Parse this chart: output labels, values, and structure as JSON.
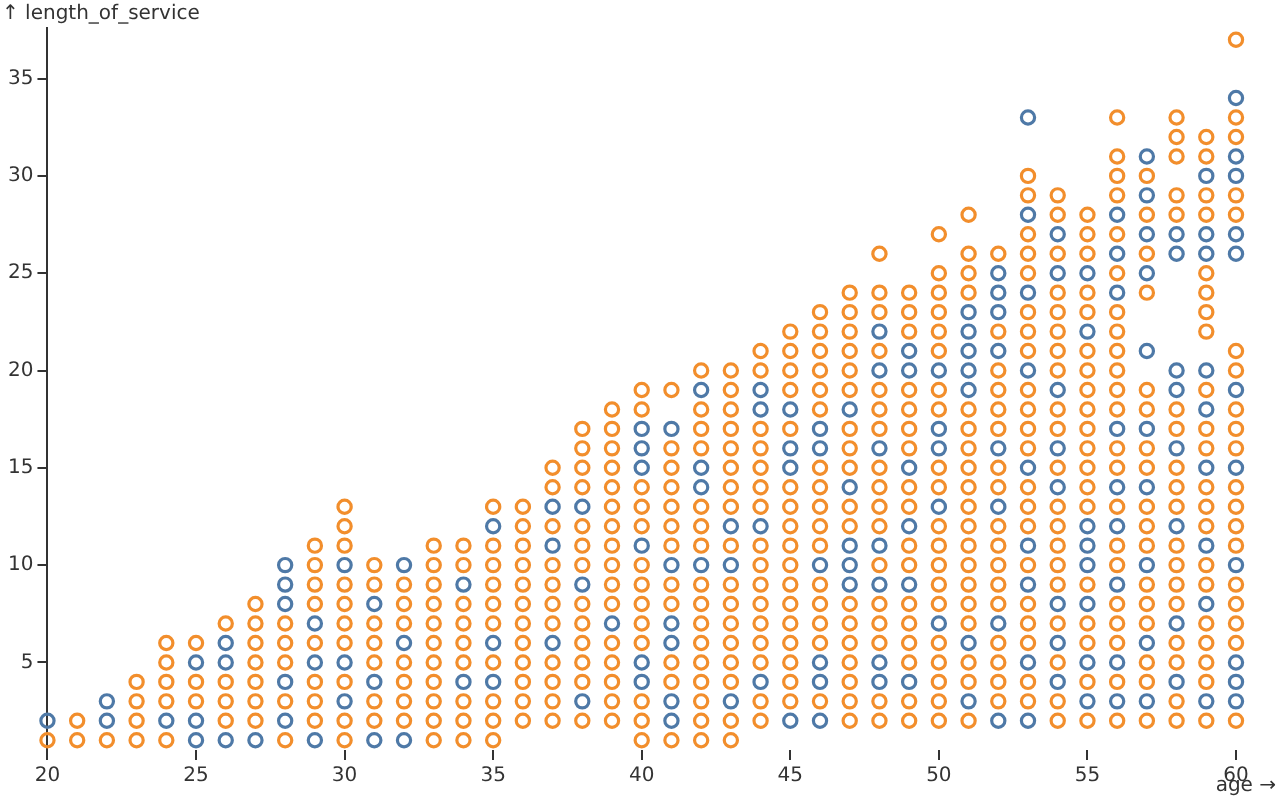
{
  "chart_data": {
    "type": "scatter",
    "xlabel": "age →",
    "ylabel": "↑ length_of_service",
    "marker": "circle",
    "grid": false,
    "legend": false,
    "xlim": [
      20,
      60
    ],
    "ylim": [
      0.5,
      37.6
    ],
    "xticks": [
      20,
      25,
      30,
      35,
      40,
      45,
      50,
      55,
      60
    ],
    "yticks": [
      5,
      10,
      15,
      20,
      25,
      30,
      35
    ],
    "series": [
      {
        "color": "#4e79a7",
        "x": [
          20,
          22,
          22,
          24,
          25,
          25,
          25,
          26,
          26,
          26,
          27,
          28,
          28,
          28,
          28,
          28,
          29,
          29,
          29,
          30,
          30,
          30,
          31,
          31,
          31,
          32,
          32,
          32,
          34,
          34,
          35,
          35,
          35,
          37,
          37,
          37,
          38,
          38,
          38,
          39,
          40,
          40,
          40,
          40,
          40,
          40,
          41,
          41,
          41,
          41,
          41,
          41,
          42,
          42,
          42,
          42,
          43,
          43,
          43,
          44,
          44,
          44,
          44,
          45,
          45,
          45,
          45,
          46,
          46,
          46,
          46,
          46,
          46,
          47,
          47,
          47,
          47,
          47,
          48,
          48,
          48,
          48,
          48,
          48,
          48,
          49,
          49,
          49,
          49,
          49,
          49,
          50,
          50,
          50,
          50,
          50,
          51,
          51,
          51,
          51,
          51,
          51,
          51,
          52,
          52,
          52,
          52,
          52,
          52,
          52,
          52,
          53,
          53,
          53,
          53,
          53,
          53,
          53,
          53,
          53,
          54,
          54,
          54,
          54,
          54,
          54,
          54,
          54,
          55,
          55,
          55,
          55,
          55,
          55,
          55,
          55,
          56,
          56,
          56,
          56,
          56,
          56,
          56,
          56,
          56,
          57,
          57,
          57,
          57,
          57,
          57,
          57,
          57,
          57,
          57,
          58,
          58,
          58,
          58,
          58,
          58,
          58,
          58,
          59,
          59,
          59,
          59,
          59,
          59,
          59,
          59,
          59,
          60,
          60,
          60,
          60,
          60,
          60,
          60,
          60,
          60,
          60,
          60
        ],
        "values": [
          2,
          2,
          3,
          2,
          1,
          2,
          5,
          1,
          5,
          6,
          1,
          2,
          4,
          8,
          9,
          10,
          1,
          5,
          7,
          3,
          5,
          10,
          1,
          4,
          8,
          1,
          6,
          10,
          4,
          9,
          4,
          6,
          12,
          6,
          11,
          13,
          3,
          9,
          13,
          7,
          4,
          5,
          11,
          15,
          16,
          17,
          2,
          3,
          6,
          7,
          10,
          17,
          10,
          14,
          15,
          19,
          3,
          10,
          12,
          4,
          12,
          18,
          19,
          2,
          15,
          16,
          18,
          2,
          4,
          5,
          10,
          16,
          17,
          9,
          10,
          11,
          14,
          18,
          4,
          5,
          9,
          11,
          16,
          20,
          22,
          4,
          9,
          12,
          15,
          20,
          21,
          7,
          13,
          16,
          17,
          20,
          3,
          6,
          19,
          20,
          21,
          22,
          23,
          2,
          7,
          13,
          16,
          21,
          23,
          24,
          25,
          2,
          5,
          9,
          11,
          15,
          20,
          24,
          28,
          33,
          4,
          6,
          8,
          14,
          16,
          19,
          25,
          27,
          3,
          5,
          8,
          10,
          11,
          12,
          22,
          25,
          3,
          5,
          9,
          12,
          14,
          17,
          24,
          26,
          28,
          3,
          6,
          10,
          14,
          17,
          21,
          25,
          27,
          29,
          31,
          4,
          7,
          12,
          16,
          19,
          20,
          26,
          27,
          3,
          8,
          11,
          15,
          18,
          20,
          26,
          27,
          30,
          3,
          4,
          5,
          10,
          15,
          19,
          26,
          27,
          30,
          31,
          34
        ]
      },
      {
        "color": "#f28e2c",
        "x": [
          20,
          21,
          21,
          22,
          23,
          23,
          23,
          23,
          24,
          24,
          24,
          24,
          24,
          25,
          25,
          25,
          26,
          26,
          26,
          26,
          27,
          27,
          27,
          27,
          27,
          27,
          27,
          28,
          28,
          28,
          28,
          28,
          29,
          29,
          29,
          29,
          29,
          29,
          29,
          29,
          30,
          30,
          30,
          30,
          30,
          30,
          30,
          30,
          30,
          30,
          31,
          31,
          31,
          31,
          31,
          31,
          31,
          32,
          32,
          32,
          32,
          32,
          32,
          32,
          33,
          33,
          33,
          33,
          33,
          33,
          33,
          33,
          33,
          33,
          33,
          34,
          34,
          34,
          34,
          34,
          34,
          34,
          34,
          34,
          35,
          35,
          35,
          35,
          35,
          35,
          35,
          35,
          35,
          35,
          36,
          36,
          36,
          36,
          36,
          36,
          36,
          36,
          36,
          36,
          36,
          36,
          37,
          37,
          37,
          37,
          37,
          37,
          37,
          37,
          37,
          37,
          37,
          38,
          38,
          38,
          38,
          38,
          38,
          38,
          38,
          38,
          38,
          38,
          38,
          38,
          39,
          39,
          39,
          39,
          39,
          39,
          39,
          39,
          39,
          39,
          39,
          39,
          39,
          39,
          39,
          39,
          40,
          40,
          40,
          40,
          40,
          40,
          40,
          40,
          40,
          40,
          40,
          40,
          40,
          41,
          41,
          41,
          41,
          41,
          41,
          41,
          41,
          41,
          41,
          41,
          41,
          42,
          42,
          42,
          42,
          42,
          42,
          42,
          42,
          42,
          42,
          42,
          42,
          42,
          42,
          42,
          42,
          43,
          43,
          43,
          43,
          43,
          43,
          43,
          43,
          43,
          43,
          43,
          43,
          43,
          43,
          43,
          43,
          43,
          44,
          44,
          44,
          44,
          44,
          44,
          44,
          44,
          44,
          44,
          44,
          44,
          44,
          44,
          44,
          44,
          45,
          45,
          45,
          45,
          45,
          45,
          45,
          45,
          45,
          45,
          45,
          45,
          45,
          45,
          45,
          45,
          45,
          46,
          46,
          46,
          46,
          46,
          46,
          46,
          46,
          46,
          46,
          46,
          46,
          46,
          46,
          46,
          46,
          47,
          47,
          47,
          47,
          47,
          47,
          47,
          47,
          47,
          47,
          47,
          47,
          47,
          47,
          47,
          47,
          47,
          47,
          48,
          48,
          48,
          48,
          48,
          48,
          48,
          48,
          48,
          48,
          48,
          48,
          48,
          48,
          48,
          48,
          48,
          49,
          49,
          49,
          49,
          49,
          49,
          49,
          49,
          49,
          49,
          49,
          49,
          49,
          49,
          49,
          49,
          49,
          50,
          50,
          50,
          50,
          50,
          50,
          50,
          50,
          50,
          50,
          50,
          50,
          50,
          50,
          50,
          50,
          50,
          50,
          50,
          50,
          51,
          51,
          51,
          51,
          51,
          51,
          51,
          51,
          51,
          51,
          51,
          51,
          51,
          51,
          51,
          51,
          51,
          51,
          51,
          52,
          52,
          52,
          52,
          52,
          52,
          52,
          52,
          52,
          52,
          52,
          52,
          52,
          52,
          52,
          52,
          52,
          53,
          53,
          53,
          53,
          53,
          53,
          53,
          53,
          53,
          53,
          53,
          53,
          53,
          53,
          53,
          53,
          53,
          53,
          53,
          53,
          53,
          54,
          54,
          54,
          54,
          54,
          54,
          54,
          54,
          54,
          54,
          54,
          54,
          54,
          54,
          54,
          54,
          54,
          54,
          54,
          54,
          55,
          55,
          55,
          55,
          55,
          55,
          55,
          55,
          55,
          55,
          55,
          55,
          55,
          55,
          55,
          55,
          55,
          55,
          55,
          56,
          56,
          56,
          56,
          56,
          56,
          56,
          56,
          56,
          56,
          56,
          56,
          56,
          56,
          56,
          56,
          56,
          56,
          56,
          56,
          56,
          56,
          57,
          57,
          57,
          57,
          57,
          57,
          57,
          57,
          57,
          57,
          57,
          57,
          57,
          57,
          57,
          57,
          57,
          58,
          58,
          58,
          58,
          58,
          58,
          58,
          58,
          58,
          58,
          58,
          58,
          58,
          58,
          58,
          58,
          58,
          58,
          59,
          59,
          59,
          59,
          59,
          59,
          59,
          59,
          59,
          59,
          59,
          59,
          59,
          59,
          59,
          59,
          59,
          59,
          59,
          59,
          59,
          60,
          60,
          60,
          60,
          60,
          60,
          60,
          60,
          60,
          60,
          60,
          60,
          60,
          60,
          60,
          60,
          60,
          60,
          60
        ],
        "values": [
          1,
          1,
          2,
          1,
          1,
          2,
          3,
          4,
          1,
          3,
          4,
          5,
          6,
          3,
          4,
          6,
          2,
          3,
          4,
          7,
          2,
          3,
          4,
          5,
          6,
          7,
          8,
          1,
          3,
          5,
          6,
          7,
          2,
          3,
          4,
          6,
          8,
          9,
          10,
          11,
          1,
          2,
          4,
          6,
          7,
          8,
          9,
          11,
          12,
          13,
          2,
          3,
          5,
          6,
          7,
          9,
          10,
          2,
          3,
          4,
          5,
          7,
          8,
          9,
          1,
          2,
          3,
          4,
          5,
          6,
          7,
          8,
          9,
          10,
          11,
          1,
          2,
          3,
          5,
          6,
          7,
          8,
          10,
          11,
          1,
          2,
          3,
          5,
          7,
          8,
          9,
          10,
          11,
          13,
          2,
          3,
          4,
          5,
          6,
          7,
          8,
          9,
          10,
          11,
          12,
          13,
          2,
          3,
          4,
          5,
          7,
          8,
          9,
          10,
          12,
          14,
          15,
          2,
          4,
          5,
          6,
          7,
          8,
          10,
          11,
          12,
          14,
          15,
          16,
          17,
          2,
          3,
          4,
          5,
          6,
          8,
          9,
          10,
          11,
          12,
          13,
          14,
          15,
          16,
          17,
          18,
          1,
          2,
          3,
          6,
          7,
          8,
          9,
          10,
          12,
          13,
          14,
          18,
          19,
          1,
          4,
          5,
          8,
          9,
          11,
          12,
          13,
          14,
          15,
          16,
          19,
          1,
          2,
          3,
          4,
          5,
          6,
          7,
          8,
          9,
          11,
          12,
          13,
          16,
          17,
          18,
          20,
          1,
          2,
          4,
          5,
          6,
          7,
          8,
          9,
          11,
          13,
          14,
          15,
          16,
          17,
          18,
          19,
          20,
          2,
          3,
          5,
          6,
          7,
          8,
          9,
          10,
          11,
          13,
          14,
          15,
          16,
          17,
          20,
          21,
          3,
          4,
          5,
          6,
          7,
          8,
          9,
          10,
          11,
          12,
          13,
          14,
          17,
          19,
          20,
          21,
          22,
          3,
          6,
          7,
          8,
          9,
          11,
          12,
          13,
          14,
          15,
          18,
          19,
          20,
          21,
          22,
          23,
          2,
          3,
          4,
          5,
          6,
          7,
          8,
          12,
          13,
          15,
          16,
          17,
          19,
          20,
          21,
          22,
          23,
          24,
          2,
          3,
          6,
          7,
          8,
          10,
          12,
          13,
          14,
          15,
          17,
          18,
          19,
          21,
          23,
          24,
          26,
          2,
          3,
          5,
          6,
          7,
          8,
          10,
          11,
          13,
          14,
          16,
          17,
          18,
          19,
          22,
          23,
          24,
          2,
          3,
          4,
          5,
          6,
          8,
          9,
          10,
          11,
          12,
          14,
          15,
          18,
          19,
          21,
          22,
          23,
          24,
          25,
          27,
          2,
          4,
          5,
          7,
          8,
          9,
          10,
          11,
          12,
          13,
          14,
          15,
          16,
          17,
          18,
          24,
          25,
          26,
          28,
          3,
          4,
          5,
          6,
          8,
          9,
          10,
          11,
          12,
          14,
          15,
          17,
          18,
          19,
          20,
          22,
          26,
          3,
          4,
          6,
          7,
          8,
          10,
          12,
          13,
          14,
          16,
          17,
          18,
          19,
          21,
          22,
          23,
          25,
          26,
          27,
          29,
          30,
          2,
          3,
          5,
          7,
          9,
          10,
          11,
          12,
          13,
          15,
          17,
          18,
          20,
          21,
          22,
          23,
          24,
          26,
          28,
          29,
          2,
          4,
          6,
          7,
          9,
          13,
          14,
          15,
          16,
          17,
          18,
          19,
          20,
          21,
          23,
          24,
          26,
          27,
          28,
          2,
          4,
          6,
          7,
          8,
          10,
          11,
          13,
          15,
          16,
          18,
          19,
          20,
          21,
          22,
          23,
          25,
          27,
          29,
          30,
          31,
          33,
          2,
          4,
          5,
          7,
          8,
          9,
          11,
          12,
          13,
          15,
          16,
          18,
          19,
          24,
          26,
          28,
          30,
          2,
          3,
          5,
          6,
          8,
          9,
          10,
          11,
          13,
          14,
          15,
          17,
          18,
          28,
          29,
          31,
          32,
          33,
          2,
          4,
          5,
          6,
          7,
          9,
          10,
          12,
          13,
          14,
          16,
          17,
          19,
          22,
          23,
          24,
          25,
          28,
          29,
          31,
          32,
          2,
          6,
          7,
          8,
          9,
          11,
          12,
          13,
          14,
          16,
          17,
          18,
          20,
          21,
          28,
          29,
          32,
          33,
          37
        ]
      }
    ]
  }
}
